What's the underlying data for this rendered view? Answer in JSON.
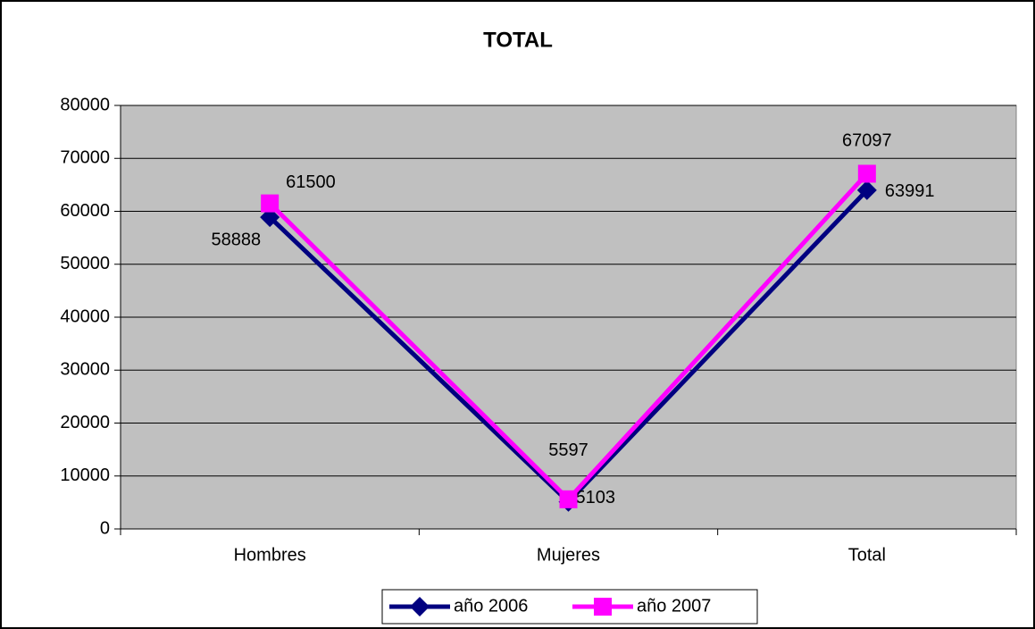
{
  "chart_data": {
    "type": "line",
    "title": "TOTAL",
    "categories": [
      "Hombres",
      "Mujeres",
      "Total"
    ],
    "series": [
      {
        "name": "año 2006",
        "color": "#000080",
        "marker": "diamond",
        "values": [
          58888,
          5103,
          63991
        ]
      },
      {
        "name": "año 2007",
        "color": "#ff00ff",
        "marker": "square",
        "values": [
          61500,
          5597,
          67097
        ]
      }
    ],
    "ylim": [
      0,
      80000
    ],
    "yticks": [
      0,
      10000,
      20000,
      30000,
      40000,
      50000,
      60000,
      70000,
      80000
    ],
    "grid": true,
    "legend": "bottom"
  }
}
